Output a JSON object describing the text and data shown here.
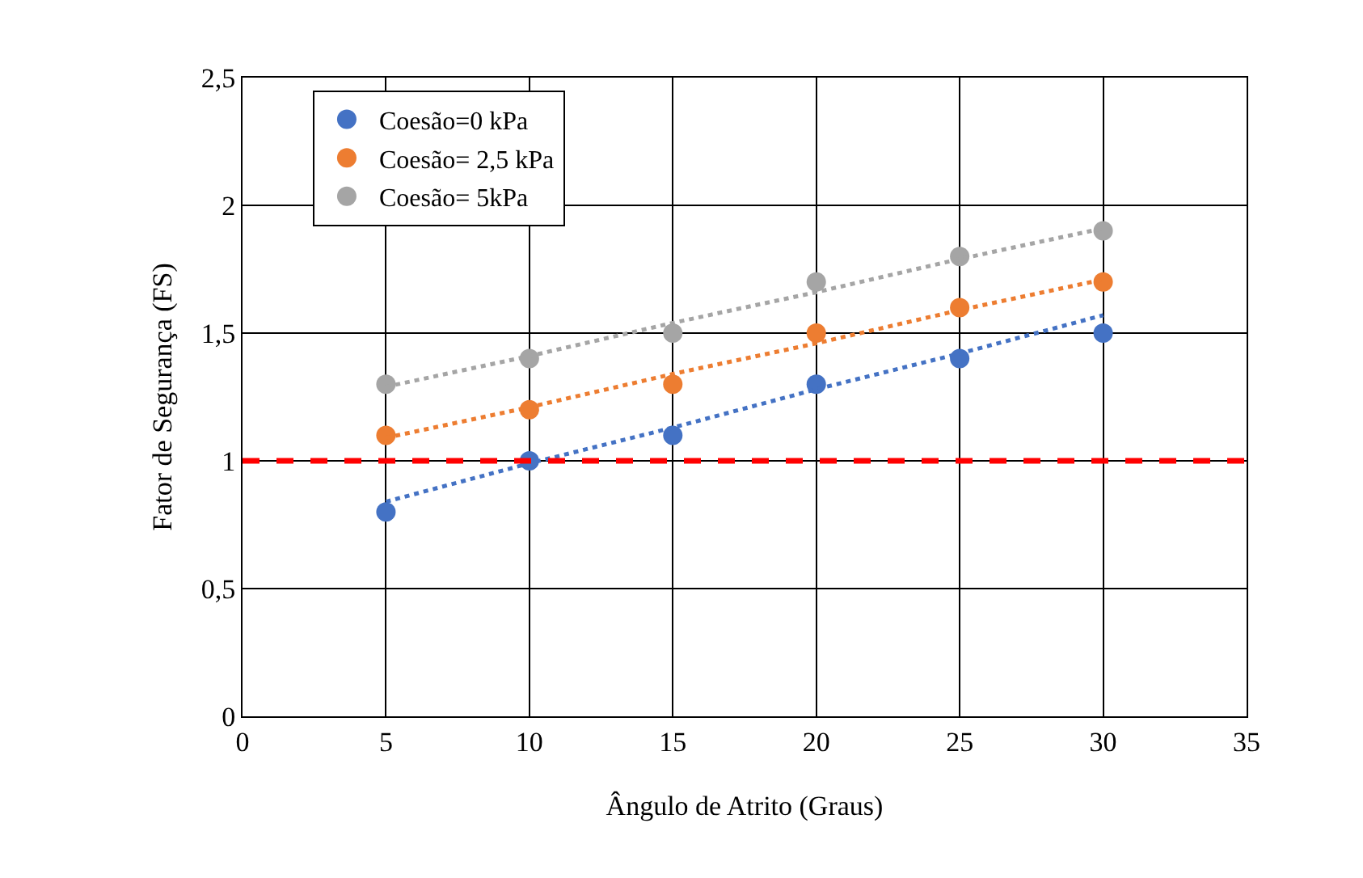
{
  "chart_data": {
    "type": "scatter",
    "xlabel": "Ângulo de Atrito (Graus)",
    "ylabel": "Fator de Segurança (FS)",
    "x": [
      5,
      10,
      15,
      20,
      25,
      30
    ],
    "series": [
      {
        "name": "Coesão=0 kPa",
        "color": "#4472c4",
        "values": [
          0.8,
          1,
          1.1,
          1.3,
          1.4,
          1.5
        ]
      },
      {
        "name": "Coesão= 2,5 kPa",
        "color": "#ed7d31",
        "values": [
          1.1,
          1.2,
          1.3,
          1.5,
          1.6,
          1.7
        ]
      },
      {
        "name": "Coesão= 5kPa",
        "color": "#a5a5a5",
        "values": [
          1.3,
          1.4,
          1.5,
          1.7,
          1.8,
          1.9
        ]
      },
      {
        "type": "line",
        "color": "#4472c4",
        "values": [
          0.84,
          0.99,
          1.13,
          1.28,
          1.42,
          1.57
        ],
        "line_style": "dotted",
        "marker": "none"
      },
      {
        "type": "line",
        "color": "#ed7d31",
        "values": [
          1.09,
          1.21,
          1.34,
          1.46,
          1.59,
          1.71
        ],
        "line_style": "dotted",
        "marker": "none"
      },
      {
        "type": "line",
        "color": "#a5a5a5",
        "values": [
          1.29,
          1.41,
          1.54,
          1.66,
          1.79,
          1.91
        ],
        "line_style": "dotted",
        "marker": "none"
      }
    ],
    "xlim": [
      0,
      35
    ],
    "xticks": [
      0,
      5,
      10,
      15,
      20,
      25,
      30,
      35
    ],
    "ylim": [
      0,
      2.5
    ],
    "yticks": [
      0,
      {
        "value": 0.5,
        "label": "0,5"
      },
      1,
      {
        "value": 1.5,
        "label": "1,5"
      },
      2,
      {
        "value": 2.5,
        "label": "2,5"
      }
    ],
    "ref_lines": [
      {
        "axis": "y",
        "value": 1,
        "color": "#ff0000",
        "line_style": "dashed"
      }
    ],
    "grid": true,
    "legend": "top left",
    "marker": "circle"
  }
}
